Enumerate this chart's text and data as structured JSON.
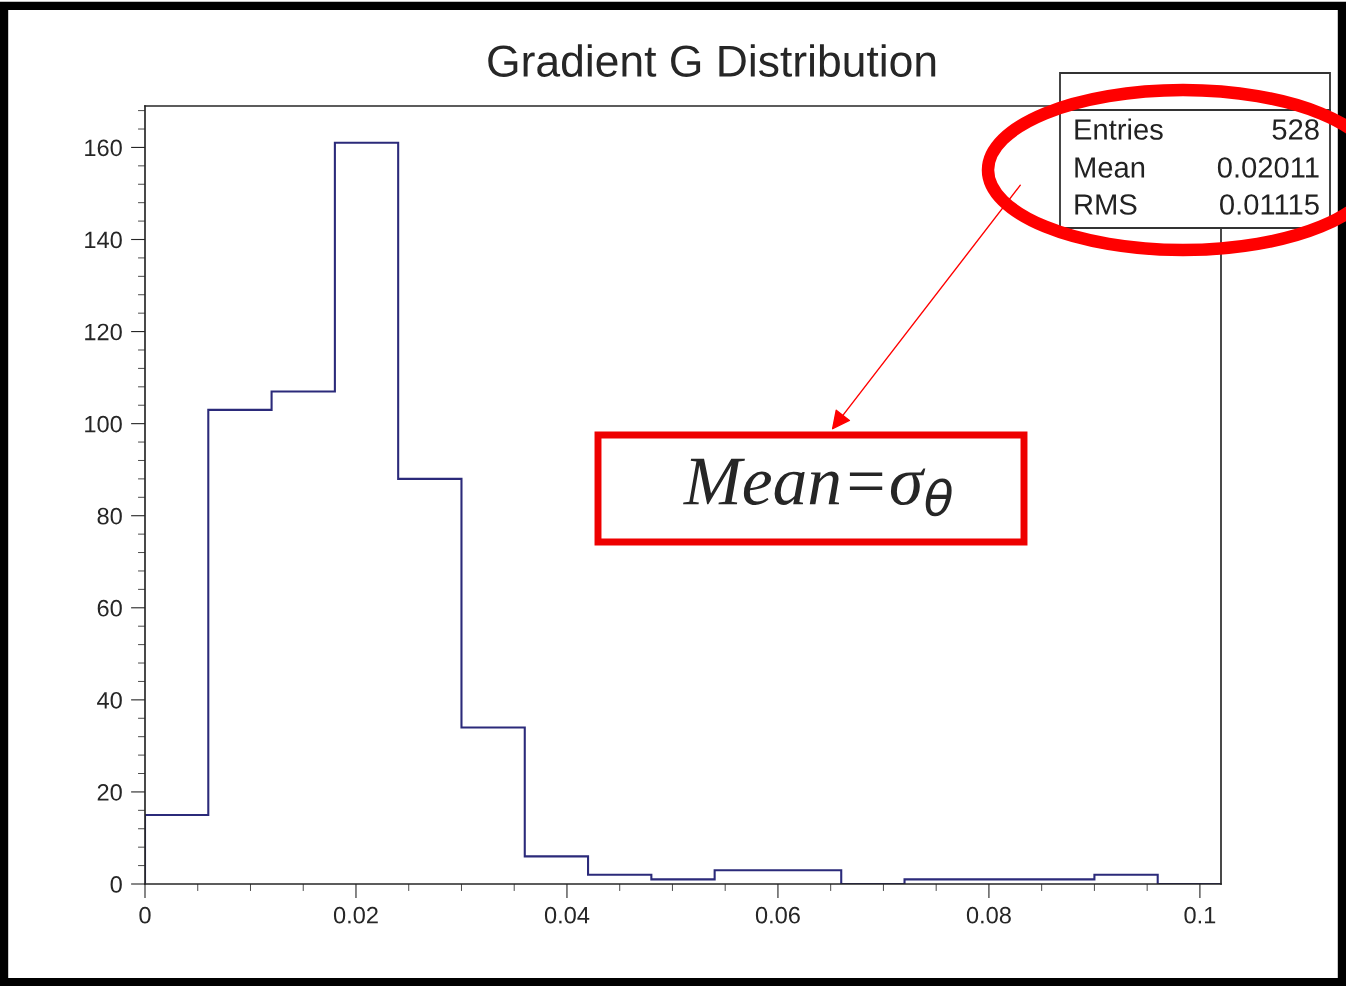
{
  "chart_data": {
    "type": "histogram",
    "title": "Gradient G Distribution",
    "bins": [
      0,
      0.006,
      0.012,
      0.018,
      0.024,
      0.03,
      0.036,
      0.042,
      0.048,
      0.054,
      0.06,
      0.066,
      0.072,
      0.078,
      0.084,
      0.09,
      0.096,
      0.102
    ],
    "values": [
      15,
      103,
      107,
      161,
      88,
      34,
      6,
      2,
      1,
      3,
      3,
      0,
      1,
      1,
      1,
      2,
      0
    ],
    "color": "#2b2a7a",
    "xlim": [
      0,
      0.102
    ],
    "ylim": [
      0,
      169
    ],
    "xticks": [
      0,
      0.02,
      0.04,
      0.06,
      0.08,
      0.1
    ],
    "yticks": [
      0,
      20,
      40,
      60,
      80,
      100,
      120,
      140,
      160
    ],
    "annotations": [
      "Entries",
      "528",
      "Mean",
      "0.02011",
      "RMS",
      "0.01115",
      "Mean=σ$_{θ}$"
    ],
    "grid": false,
    "legend": false
  }
}
